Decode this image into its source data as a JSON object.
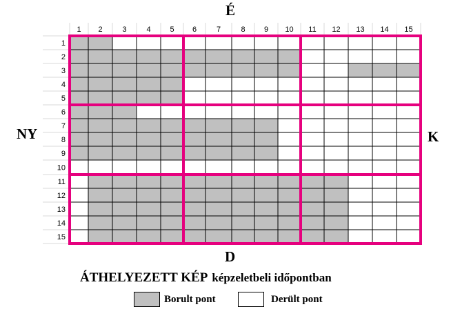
{
  "directions": {
    "north": "É",
    "south": "D",
    "west": "NY",
    "east": "K"
  },
  "title": {
    "main": "ÁTHELYEZETT KÉP",
    "sub": "képzeletbeli időpontban"
  },
  "legend": {
    "cloudy": "Borult pont",
    "clear": "Derült pont"
  },
  "colors": {
    "cloudy": "#c0c0c0",
    "clear": "#ffffff",
    "block_border": "#e6007e",
    "grid_line": "#000000"
  },
  "columns": [
    "1",
    "2",
    "3",
    "4",
    "5",
    "6",
    "7",
    "8",
    "9",
    "10",
    "11",
    "12",
    "13",
    "14",
    "15"
  ],
  "rows": [
    "1",
    "2",
    "3",
    "4",
    "5",
    "6",
    "7",
    "8",
    "9",
    "10",
    "11",
    "12",
    "13",
    "14",
    "15"
  ],
  "grid": [
    "110000000000000",
    "111111111100000",
    "111111111100111",
    "111110000000000",
    "111110000000000",
    "111000000000000",
    "111111111000000",
    "111111111000000",
    "111111111000000",
    "000000000000000",
    "011111111111000",
    "011111111111000",
    "011111111111000",
    "011111111111000",
    "011111111111000"
  ]
}
